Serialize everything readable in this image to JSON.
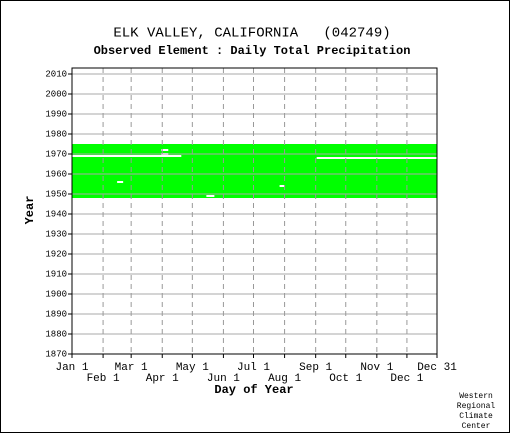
{
  "chart_data": {
    "type": "coverage",
    "title": "ELK VALLEY, CALIFORNIA   (042749)",
    "subtitle": "Observed Element : Daily Total Precipitation",
    "xlabel": "Day of Year",
    "ylabel": "Year",
    "color": "#00ff00",
    "coverage": {
      "start_day": 1,
      "end_day": 365,
      "start_year": 1948,
      "end_year": 1975
    },
    "gaps": [
      {
        "start_day": 1,
        "end_day": 110,
        "year": 1969
      },
      {
        "start_day": 245,
        "end_day": 365,
        "year": 1968
      },
      {
        "start_day": 46,
        "end_day": 52,
        "year": 1956
      },
      {
        "start_day": 90,
        "end_day": 97,
        "year": 1972
      },
      {
        "start_day": 90,
        "end_day": 97,
        "year": 1970
      },
      {
        "start_day": 135,
        "end_day": 143,
        "year": 1949
      },
      {
        "start_day": 208,
        "end_day": 213,
        "year": 1954
      },
      {
        "start_day": 182,
        "end_day": 365,
        "year": 1947
      }
    ],
    "xlim": [
      1,
      365
    ],
    "xticks": [
      {
        "value": 1,
        "label": "Jan 1"
      },
      {
        "value": 32,
        "label": "Feb 1"
      },
      {
        "value": 60,
        "label": "Mar 1"
      },
      {
        "value": 91,
        "label": "Apr 1"
      },
      {
        "value": 121,
        "label": "May 1"
      },
      {
        "value": 152,
        "label": "Jun 1"
      },
      {
        "value": 182,
        "label": "Jul 1"
      },
      {
        "value": 213,
        "label": "Aug 1"
      },
      {
        "value": 244,
        "label": "Sep 1"
      },
      {
        "value": 274,
        "label": "Oct 1"
      },
      {
        "value": 305,
        "label": "Nov 1"
      },
      {
        "value": 335,
        "label": "Dec 1"
      },
      {
        "value": 365,
        "label": "Dec 31"
      }
    ],
    "ylim": [
      1870,
      2013
    ],
    "yticks": [
      1870,
      1880,
      1890,
      1900,
      1910,
      1920,
      1930,
      1940,
      1950,
      1960,
      1970,
      1980,
      1990,
      2000,
      2010
    ],
    "grid": true,
    "credit": [
      "Western",
      "Regional",
      "Climate",
      "Center"
    ]
  }
}
